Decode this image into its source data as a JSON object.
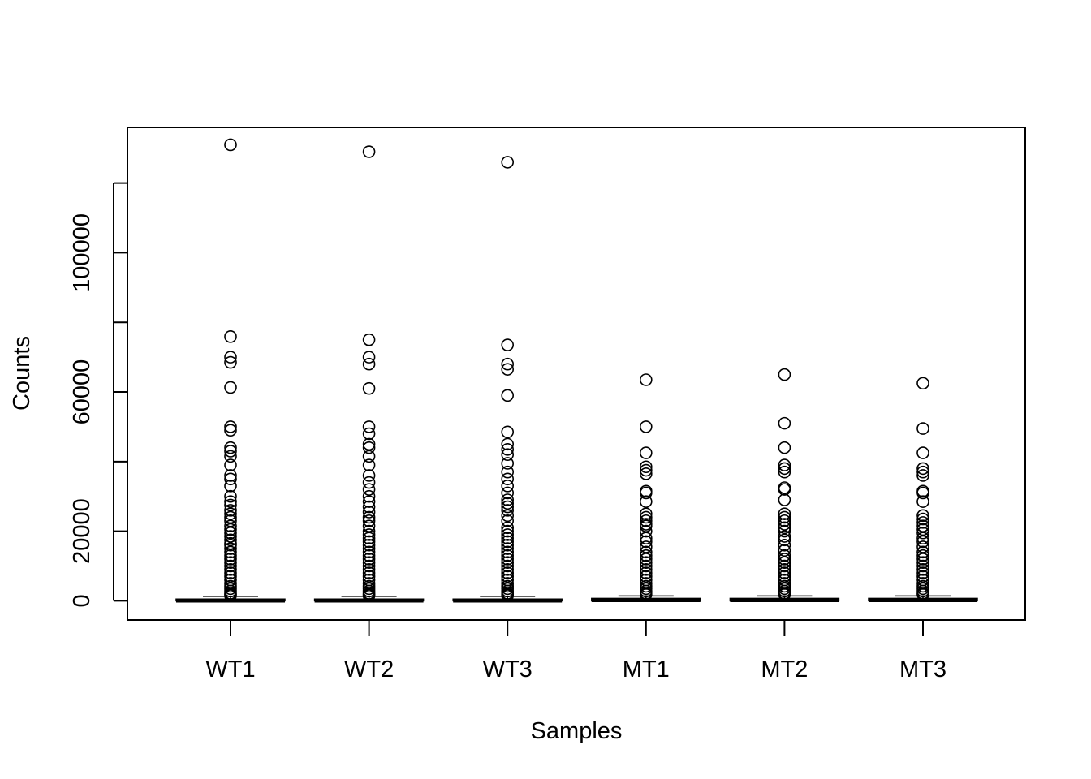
{
  "chart_data": {
    "type": "boxplot",
    "title": "",
    "xlabel": "Samples",
    "ylabel": "Counts",
    "ylim": [
      -5500,
      136000
    ],
    "y_ticks": [
      0,
      20000,
      40000,
      60000,
      80000,
      100000,
      120000
    ],
    "y_tick_labels": [
      "0",
      "20000",
      "",
      "60000",
      "",
      "100000",
      ""
    ],
    "categories": [
      "WT1",
      "WT2",
      "WT3",
      "MT1",
      "MT2",
      "MT3"
    ],
    "boxes": [
      {
        "name": "WT1",
        "min": 0,
        "q1": 0,
        "median": 100,
        "q3": 500,
        "whisker_high": 1300,
        "outliers": [
          131000,
          75900,
          70000,
          68500,
          61300,
          50000,
          49000,
          44000,
          43000,
          41500,
          39000,
          36000,
          35000,
          33000,
          30000,
          28500,
          27500,
          26000,
          25000,
          24000,
          23000,
          21500,
          20500,
          19500,
          18500,
          17500,
          16500,
          16000,
          15000,
          14000,
          13000,
          12000,
          11000,
          10000,
          9000,
          8000,
          7000,
          6000,
          5000,
          4200,
          3500,
          2800,
          2200,
          1800,
          1500
        ]
      },
      {
        "name": "WT2",
        "min": 0,
        "q1": 0,
        "median": 100,
        "q3": 500,
        "whisker_high": 1300,
        "outliers": [
          129000,
          75000,
          70000,
          68000,
          61000,
          50000,
          48000,
          45000,
          44000,
          41500,
          39000,
          36000,
          34000,
          32000,
          30000,
          28500,
          27000,
          25500,
          24000,
          23000,
          21500,
          20000,
          19000,
          18000,
          17000,
          16000,
          15000,
          14000,
          13000,
          12000,
          11000,
          10000,
          9000,
          8000,
          7000,
          6000,
          5000,
          4200,
          3500,
          2800,
          2200,
          1800,
          1500
        ]
      },
      {
        "name": "WT3",
        "min": 0,
        "q1": 0,
        "median": 100,
        "q3": 500,
        "whisker_high": 1300,
        "outliers": [
          126000,
          73500,
          68000,
          66500,
          59000,
          48500,
          45000,
          43500,
          42000,
          39500,
          37000,
          35000,
          33000,
          31000,
          29000,
          28000,
          27000,
          26000,
          24500,
          23000,
          21000,
          20000,
          19000,
          18000,
          17000,
          16000,
          15000,
          14000,
          13000,
          12000,
          11000,
          10000,
          9000,
          8000,
          7000,
          6000,
          5000,
          4200,
          3500,
          2800,
          2200,
          1800,
          1500
        ]
      },
      {
        "name": "MT1",
        "min": 0,
        "q1": 0,
        "median": 200,
        "q3": 700,
        "whisker_high": 1400,
        "outliers": [
          63500,
          50000,
          42500,
          38500,
          37500,
          36500,
          31500,
          31000,
          28500,
          25000,
          24000,
          23000,
          22000,
          21500,
          20000,
          18000,
          17000,
          15500,
          14000,
          13000,
          12000,
          11000,
          10000,
          9000,
          8000,
          7000,
          6000,
          5000,
          4200,
          3500,
          2800,
          2200,
          1800
        ]
      },
      {
        "name": "MT2",
        "min": 0,
        "q1": 0,
        "median": 200,
        "q3": 700,
        "whisker_high": 1400,
        "outliers": [
          65000,
          51000,
          44000,
          39000,
          38000,
          37000,
          32500,
          32000,
          29000,
          25000,
          24000,
          23000,
          22000,
          21000,
          20000,
          18500,
          17500,
          16000,
          14500,
          13000,
          12000,
          11000,
          10000,
          9000,
          8000,
          7000,
          6000,
          5000,
          4200,
          3500,
          2800,
          2200,
          1800
        ]
      },
      {
        "name": "MT3",
        "min": 0,
        "q1": 0,
        "median": 200,
        "q3": 700,
        "whisker_high": 1400,
        "outliers": [
          62500,
          49500,
          42500,
          38000,
          37000,
          36000,
          31500,
          31000,
          28500,
          24500,
          23500,
          22500,
          21500,
          20500,
          19500,
          18000,
          17000,
          15500,
          14000,
          13000,
          12000,
          11000,
          10000,
          9000,
          8000,
          7000,
          6000,
          5000,
          4200,
          3500,
          2800,
          2200,
          1800
        ]
      }
    ],
    "grid": false,
    "legend": "none"
  }
}
